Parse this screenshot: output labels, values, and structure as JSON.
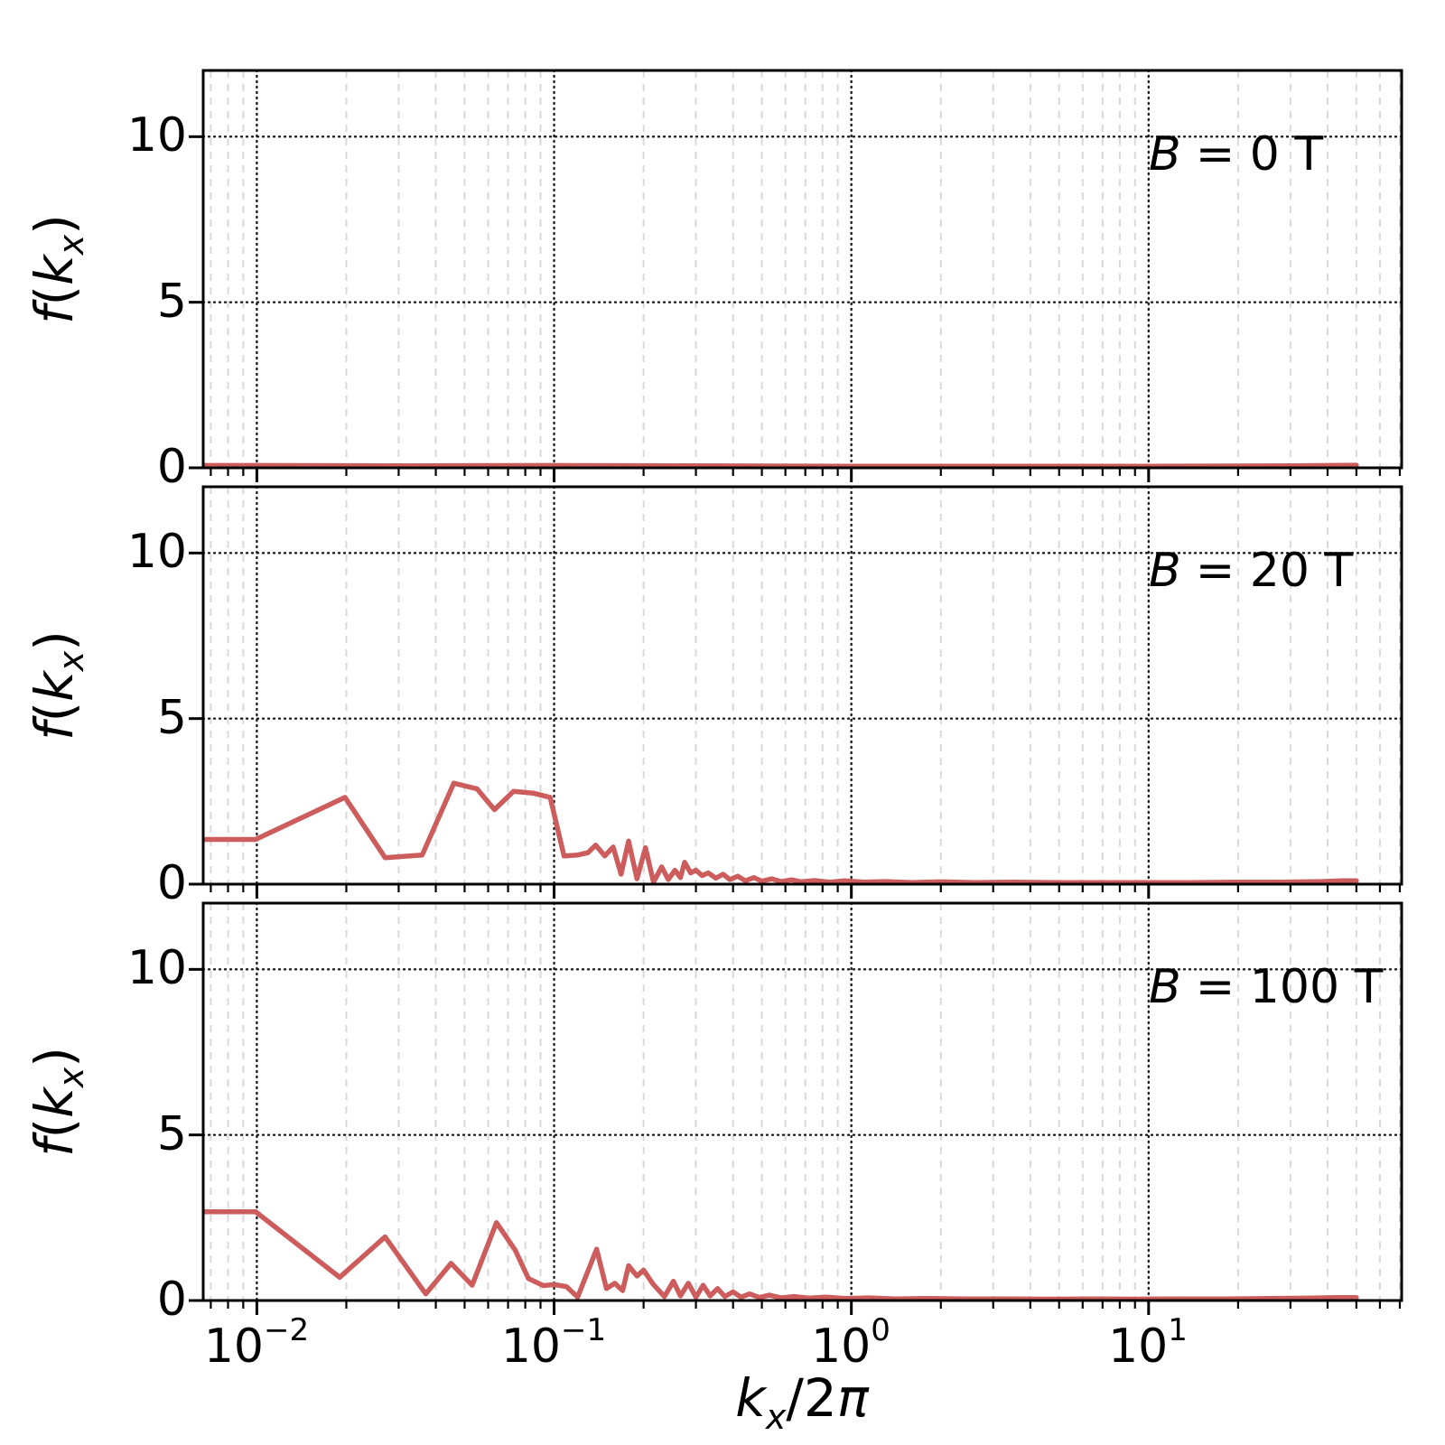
{
  "figure": {
    "background": "#ffffff",
    "line_color": "#CD5C5C",
    "y_ticks": [
      "0",
      "5",
      "10"
    ],
    "x_ticks": [
      {
        "base": "10",
        "exp": "−2"
      },
      {
        "base": "10",
        "exp": "−1"
      },
      {
        "base": "10",
        "exp": "0"
      },
      {
        "base": "10",
        "exp": "1"
      }
    ],
    "xlabel_parts": {
      "k": "k",
      "sub": "x",
      "slash": "/",
      "two": "2",
      "pi": "π"
    },
    "ylabel_parts": {
      "f": "f",
      "open": "(",
      "k": "k",
      "sub": "x",
      "close": ")"
    }
  },
  "chart_data": [
    {
      "type": "line",
      "label": "B = 0 T",
      "label_B": "B",
      "label_rest": "= 0 T",
      "color": "#CD5C5C",
      "xscale": "log",
      "xlim": [
        0.0066,
        71
      ],
      "ylim": [
        0,
        12
      ],
      "y_ticks": [
        0,
        5,
        10
      ],
      "x_tick_values": [
        0.01,
        0.1,
        1,
        10
      ],
      "grid": true,
      "xlabel": "k_x/2π",
      "ylabel": "f(k_x)",
      "x": [
        0.0066,
        0.01,
        0.03,
        0.1,
        0.3,
        1,
        3,
        10,
        30,
        50
      ],
      "y": [
        0.07,
        0.07,
        0.06,
        0.07,
        0.06,
        0.05,
        0.05,
        0.05,
        0.06,
        0.08
      ]
    },
    {
      "type": "line",
      "label": "B = 20 T",
      "label_B": "B",
      "label_rest": "= 20 T",
      "color": "#CD5C5C",
      "xscale": "log",
      "xlim": [
        0.0066,
        71
      ],
      "ylim": [
        0,
        12
      ],
      "y_ticks": [
        0,
        5,
        10
      ],
      "x_tick_values": [
        0.01,
        0.1,
        1,
        10
      ],
      "grid": true,
      "xlabel": "k_x/2π",
      "ylabel": "f(k_x)",
      "x": [
        0.0066,
        0.0099,
        0.0198,
        0.027,
        0.036,
        0.046,
        0.055,
        0.063,
        0.073,
        0.085,
        0.097,
        0.108,
        0.12,
        0.13,
        0.138,
        0.148,
        0.158,
        0.168,
        0.178,
        0.19,
        0.203,
        0.216,
        0.23,
        0.242,
        0.255,
        0.266,
        0.275,
        0.288,
        0.3,
        0.315,
        0.33,
        0.35,
        0.37,
        0.39,
        0.415,
        0.44,
        0.47,
        0.5,
        0.54,
        0.58,
        0.63,
        0.68,
        0.75,
        0.85,
        0.95,
        1.1,
        1.3,
        1.6,
        2.0,
        2.6,
        3.5,
        5,
        7,
        10,
        14,
        20,
        28,
        38,
        45,
        50
      ],
      "y": [
        1.35,
        1.35,
        2.62,
        0.8,
        0.88,
        3.05,
        2.88,
        2.25,
        2.8,
        2.75,
        2.62,
        0.85,
        0.88,
        0.95,
        1.18,
        0.85,
        1.12,
        0.3,
        1.3,
        0.16,
        1.1,
        0.06,
        0.52,
        0.14,
        0.42,
        0.2,
        0.66,
        0.34,
        0.42,
        0.26,
        0.34,
        0.18,
        0.3,
        0.14,
        0.24,
        0.1,
        0.2,
        0.09,
        0.16,
        0.08,
        0.13,
        0.07,
        0.11,
        0.06,
        0.1,
        0.06,
        0.08,
        0.05,
        0.07,
        0.05,
        0.06,
        0.05,
        0.05,
        0.05,
        0.05,
        0.06,
        0.06,
        0.08,
        0.1,
        0.1
      ]
    },
    {
      "type": "line",
      "label": "B = 100 T",
      "label_B": "B",
      "label_rest": "= 100 T",
      "color": "#CD5C5C",
      "xscale": "log",
      "xlim": [
        0.0066,
        71
      ],
      "ylim": [
        0,
        12
      ],
      "y_ticks": [
        0,
        5,
        10
      ],
      "x_tick_values": [
        0.01,
        0.1,
        1,
        10
      ],
      "grid": true,
      "xlabel": "k_x/2π",
      "ylabel": "f(k_x)",
      "x": [
        0.0066,
        0.0099,
        0.019,
        0.027,
        0.037,
        0.045,
        0.053,
        0.064,
        0.074,
        0.082,
        0.092,
        0.1,
        0.11,
        0.12,
        0.139,
        0.15,
        0.16,
        0.17,
        0.178,
        0.19,
        0.2,
        0.215,
        0.235,
        0.252,
        0.266,
        0.283,
        0.3,
        0.317,
        0.335,
        0.355,
        0.375,
        0.4,
        0.425,
        0.455,
        0.49,
        0.53,
        0.58,
        0.64,
        0.72,
        0.82,
        0.95,
        1.15,
        1.4,
        1.8,
        2.4,
        3.2,
        4.5,
        6.5,
        9,
        13,
        18,
        25,
        34,
        43,
        50
      ],
      "y": [
        2.68,
        2.68,
        0.7,
        1.92,
        0.2,
        1.12,
        0.46,
        2.35,
        1.52,
        0.66,
        0.45,
        0.48,
        0.42,
        0.1,
        1.55,
        0.36,
        0.52,
        0.3,
        1.05,
        0.74,
        0.92,
        0.5,
        0.12,
        0.58,
        0.14,
        0.52,
        0.1,
        0.46,
        0.14,
        0.36,
        0.12,
        0.26,
        0.1,
        0.2,
        0.09,
        0.16,
        0.08,
        0.12,
        0.07,
        0.1,
        0.06,
        0.08,
        0.05,
        0.06,
        0.05,
        0.05,
        0.04,
        0.05,
        0.04,
        0.05,
        0.05,
        0.06,
        0.07,
        0.09,
        0.09
      ]
    }
  ]
}
